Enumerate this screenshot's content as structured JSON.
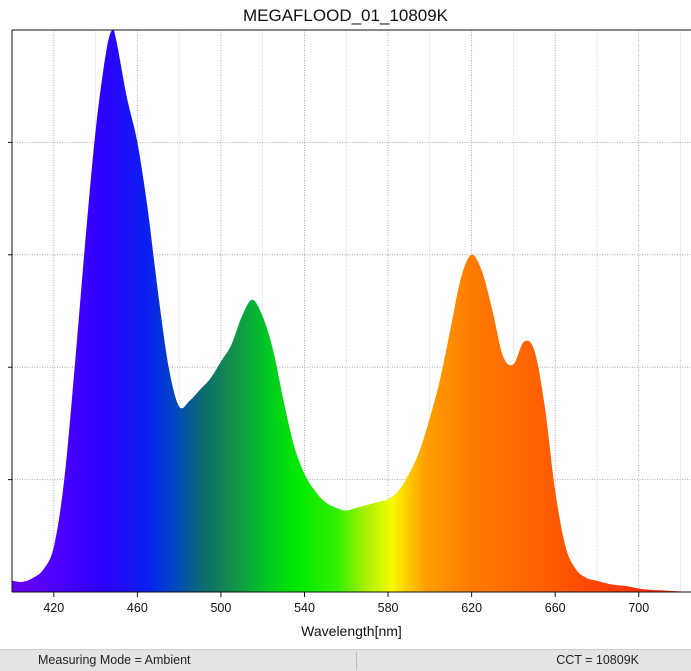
{
  "chart_data": {
    "type": "area",
    "title": "MEGAFLOOD_01_10809K",
    "xlabel": "Wavelength[nm]",
    "ylabel": "",
    "xlim": [
      400,
      725
    ],
    "ylim": [
      0,
      1
    ],
    "x_ticks": [
      420,
      460,
      500,
      540,
      580,
      620,
      660,
      700
    ],
    "y_gridlines": [
      0.2,
      0.4,
      0.6,
      0.8
    ],
    "grid": true,
    "x": [
      400,
      405,
      410,
      415,
      420,
      425,
      430,
      435,
      440,
      445,
      448,
      450,
      455,
      460,
      465,
      470,
      475,
      480,
      485,
      490,
      495,
      500,
      505,
      510,
      515,
      520,
      525,
      530,
      535,
      540,
      545,
      550,
      555,
      560,
      565,
      570,
      575,
      580,
      585,
      590,
      595,
      600,
      605,
      610,
      615,
      620,
      625,
      630,
      635,
      640,
      645,
      650,
      655,
      660,
      665,
      670,
      675,
      680,
      685,
      690,
      695,
      700,
      705,
      710,
      715,
      720,
      725
    ],
    "values": [
      0.02,
      0.018,
      0.025,
      0.04,
      0.08,
      0.2,
      0.4,
      0.62,
      0.82,
      0.96,
      1.0,
      0.98,
      0.88,
      0.8,
      0.68,
      0.53,
      0.4,
      0.33,
      0.34,
      0.36,
      0.38,
      0.41,
      0.44,
      0.49,
      0.52,
      0.49,
      0.43,
      0.34,
      0.26,
      0.21,
      0.18,
      0.16,
      0.15,
      0.145,
      0.15,
      0.155,
      0.16,
      0.165,
      0.18,
      0.21,
      0.25,
      0.31,
      0.38,
      0.47,
      0.56,
      0.6,
      0.57,
      0.5,
      0.42,
      0.405,
      0.445,
      0.43,
      0.33,
      0.18,
      0.08,
      0.04,
      0.025,
      0.02,
      0.015,
      0.012,
      0.01,
      0.006,
      0.004,
      0.003,
      0.002,
      0.001,
      0.001
    ]
  },
  "status": {
    "measuring_mode": "Measuring Mode = Ambient",
    "cct": "CCT = 10809K"
  }
}
